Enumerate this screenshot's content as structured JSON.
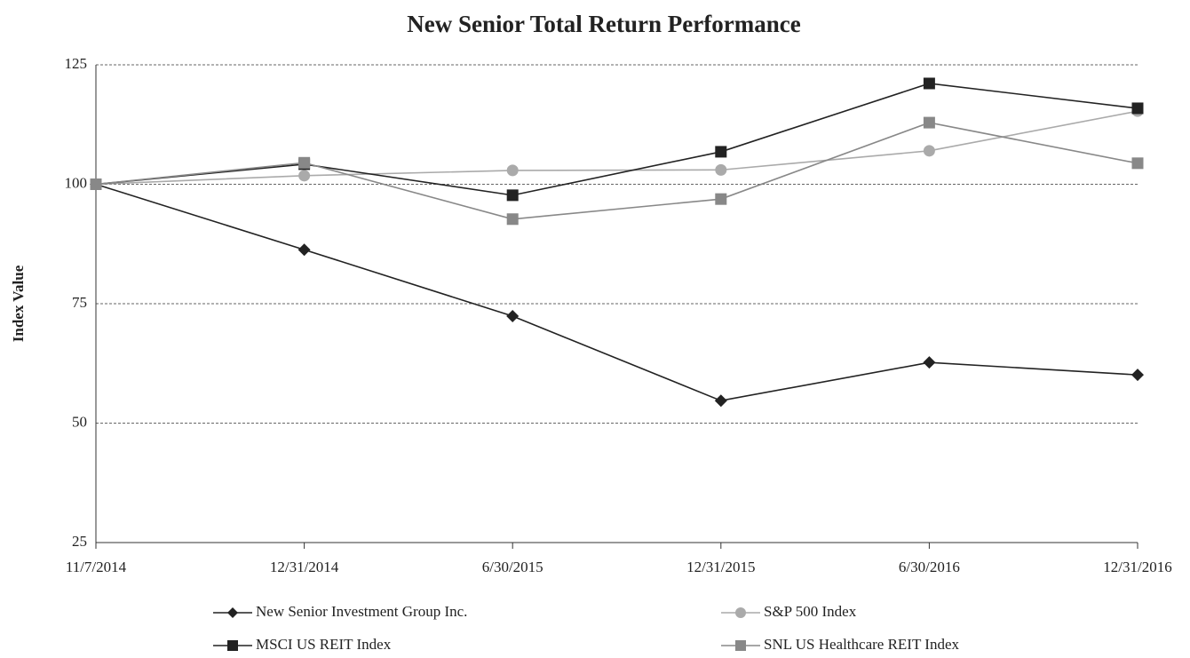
{
  "chart_data": {
    "type": "line",
    "title": "New Senior Total Return Performance",
    "y_label": "Index  Value",
    "categories": [
      "11/7/2014",
      "12/31/2014",
      "6/30/2015",
      "12/31/2015",
      "6/30/2016",
      "12/31/2016"
    ],
    "series": [
      {
        "name": "New Senior Investment Group Inc.",
        "color": "#222222",
        "marker": "diamond",
        "values": [
          100,
          86.3,
          72.4,
          54.7,
          62.7,
          60.1
        ]
      },
      {
        "name": "S&P 500 Index",
        "color": "#aaaaaa",
        "marker": "circle",
        "values": [
          100,
          101.8,
          102.9,
          103.0,
          107.0,
          115.3
        ]
      },
      {
        "name": "MSCI US REIT Index",
        "color": "#222222",
        "marker": "square",
        "values": [
          100,
          104.2,
          97.7,
          106.8,
          121.1,
          115.9
        ]
      },
      {
        "name": "SNL US Healthcare REIT Index",
        "color": "#888888",
        "marker": "square",
        "values": [
          100,
          104.5,
          92.7,
          96.9,
          112.9,
          104.4
        ]
      }
    ],
    "ylim": [
      25,
      125
    ],
    "yticks": [
      25,
      50,
      75,
      100,
      125
    ],
    "grid": true
  }
}
